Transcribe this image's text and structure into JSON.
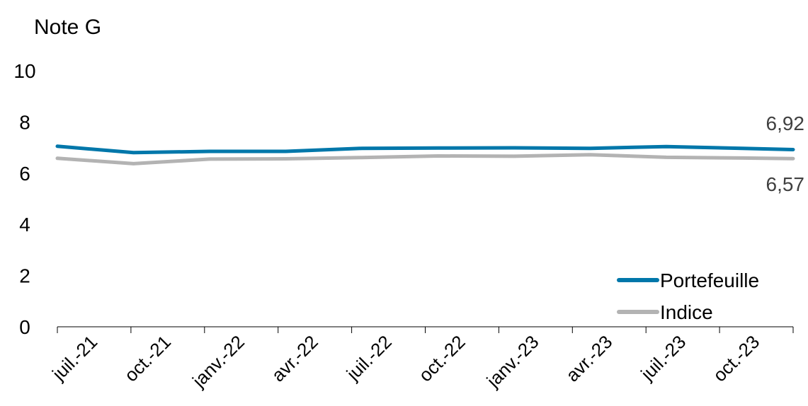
{
  "chart_data": {
    "type": "line",
    "title": "Note G",
    "x_tick_labels": [
      "juil.-21",
      "oct.-21",
      "janv.-22",
      "avr.-22",
      "juil.-22",
      "oct.-22",
      "janv.-23",
      "avr.-23",
      "juil.-23",
      "oct.-23"
    ],
    "x_points": [
      "2021-07",
      "2021-10",
      "2022-01",
      "2022-04",
      "2022-07",
      "2022-10",
      "2023-01",
      "2023-04",
      "2023-07",
      "2023-10",
      "2023-12"
    ],
    "ylim": [
      0,
      10
    ],
    "y_ticks": [
      0,
      2,
      4,
      6,
      8,
      10
    ],
    "grid": false,
    "legend_position": "bottom-right",
    "series": [
      {
        "name": "Portefeuille",
        "color": "#0077AA",
        "values": [
          7.05,
          6.8,
          6.85,
          6.85,
          6.97,
          6.98,
          6.99,
          6.97,
          7.04,
          6.97,
          6.92
        ],
        "end_label": "6,92"
      },
      {
        "name": "Indice",
        "color": "#B3B3B3",
        "values": [
          6.58,
          6.37,
          6.55,
          6.56,
          6.61,
          6.67,
          6.66,
          6.72,
          6.62,
          6.59,
          6.57
        ],
        "end_label": "6,57"
      }
    ]
  }
}
